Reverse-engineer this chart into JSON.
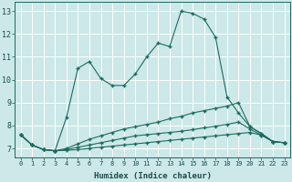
{
  "xlabel": "Humidex (Indice chaleur)",
  "ylabel": "",
  "bg_color": "#cce8e8",
  "grid_color": "#ffffff",
  "line_color": "#1a6b5e",
  "xlim": [
    -0.5,
    23.5
  ],
  "ylim": [
    6.6,
    13.4
  ],
  "xticks": [
    0,
    1,
    2,
    3,
    4,
    5,
    6,
    7,
    8,
    9,
    10,
    11,
    12,
    13,
    14,
    15,
    16,
    17,
    18,
    19,
    20,
    21,
    22,
    23
  ],
  "yticks": [
    7,
    8,
    9,
    10,
    11,
    12,
    13
  ],
  "line1_x": [
    0,
    1,
    2,
    3,
    4,
    5,
    6,
    7,
    8,
    9,
    10,
    11,
    12,
    13,
    14,
    15,
    16,
    17,
    18,
    19,
    20,
    21,
    22,
    23
  ],
  "line1_y": [
    7.6,
    7.15,
    6.95,
    6.9,
    8.35,
    10.5,
    10.8,
    10.05,
    9.75,
    9.75,
    10.25,
    11.0,
    11.6,
    11.45,
    13.0,
    12.9,
    12.65,
    11.85,
    9.25,
    8.55,
    7.95,
    7.65,
    7.3,
    7.25
  ],
  "line2_x": [
    0,
    1,
    2,
    3,
    4,
    5,
    6,
    7,
    8,
    9,
    10,
    11,
    12,
    13,
    14,
    15,
    16,
    17,
    18,
    19,
    20,
    21,
    22,
    23
  ],
  "line2_y": [
    7.6,
    7.15,
    6.95,
    6.9,
    7.0,
    7.2,
    7.4,
    7.55,
    7.7,
    7.85,
    7.95,
    8.05,
    8.15,
    8.3,
    8.4,
    8.55,
    8.65,
    8.75,
    8.85,
    9.0,
    7.95,
    7.65,
    7.3,
    7.25
  ],
  "line3_x": [
    0,
    1,
    2,
    3,
    4,
    5,
    6,
    7,
    8,
    9,
    10,
    11,
    12,
    13,
    14,
    15,
    16,
    17,
    18,
    19,
    20,
    21,
    22,
    23
  ],
  "line3_y": [
    7.6,
    7.15,
    6.95,
    6.9,
    6.95,
    7.05,
    7.15,
    7.25,
    7.35,
    7.45,
    7.55,
    7.6,
    7.65,
    7.7,
    7.75,
    7.82,
    7.9,
    7.97,
    8.05,
    8.15,
    7.85,
    7.58,
    7.3,
    7.25
  ],
  "line4_x": [
    0,
    1,
    2,
    3,
    4,
    5,
    6,
    7,
    8,
    9,
    10,
    11,
    12,
    13,
    14,
    15,
    16,
    17,
    18,
    19,
    20,
    21,
    22,
    23
  ],
  "line4_y": [
    7.6,
    7.15,
    6.95,
    6.9,
    6.92,
    6.95,
    7.0,
    7.05,
    7.1,
    7.15,
    7.2,
    7.25,
    7.3,
    7.35,
    7.4,
    7.45,
    7.5,
    7.55,
    7.6,
    7.65,
    7.7,
    7.58,
    7.3,
    7.25
  ]
}
